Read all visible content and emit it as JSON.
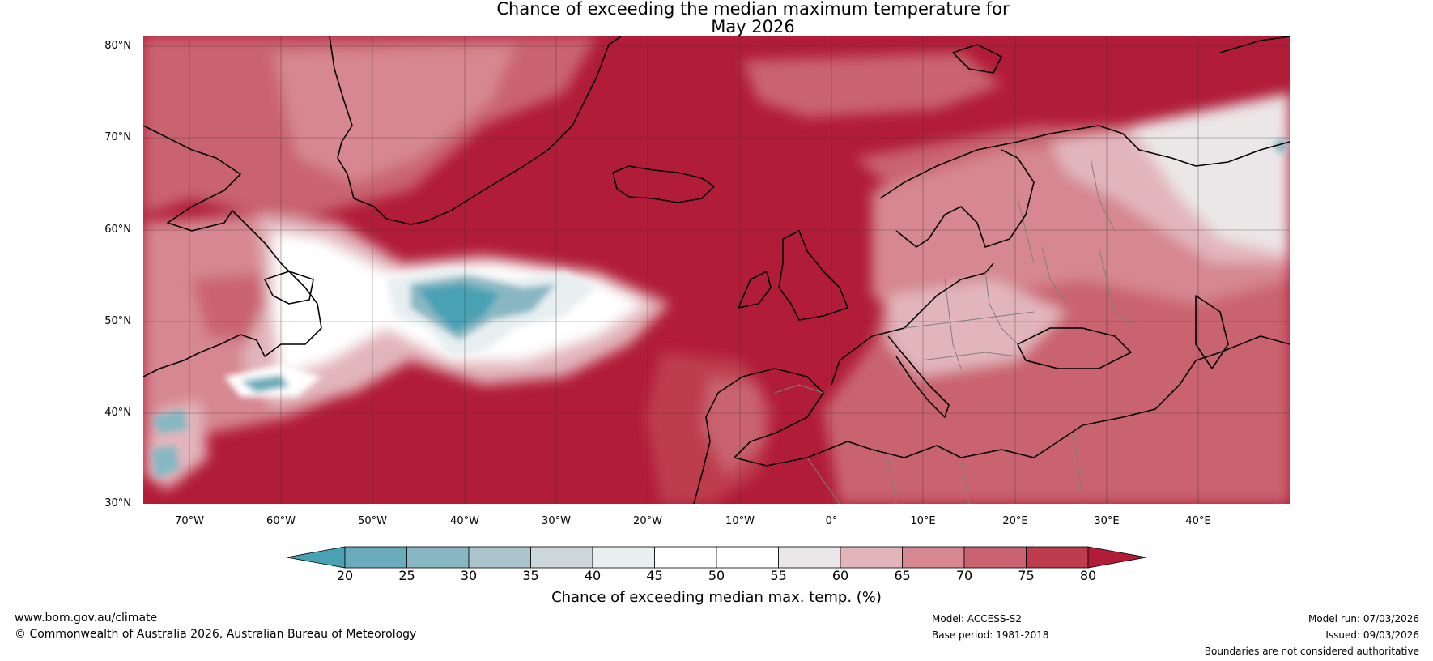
{
  "title": {
    "line1": "Chance of exceeding the median maximum temperature for",
    "line2": "May 2026"
  },
  "map": {
    "lat_labels": [
      "80°N",
      "70°N",
      "60°N",
      "50°N",
      "40°N",
      "30°N"
    ],
    "lon_labels": [
      "70°W",
      "60°W",
      "50°W",
      "40°W",
      "30°W",
      "20°W",
      "10°W",
      "0°",
      "10°E",
      "20°E",
      "30°E",
      "40°E"
    ],
    "regions": [
      "greenland",
      "iceland",
      "scandinavia",
      "british-isles",
      "iberia",
      "north-africa",
      "europe-mainland",
      "north-america",
      "cool-anomaly-atlantic"
    ]
  },
  "colorbar": {
    "ticks": [
      "20",
      "25",
      "30",
      "35",
      "40",
      "45",
      "50",
      "55",
      "60",
      "65",
      "70",
      "75",
      "80"
    ],
    "colors": [
      "#4aa1b4",
      "#6aacbc",
      "#88b7c3",
      "#a9c5cb",
      "#cdd6d8",
      "#e8eff1",
      "#ffffff",
      "#ffffff",
      "#ebe6e7",
      "#e2b5bb",
      "#d68791",
      "#c9636f",
      "#be3d4d",
      "#b11c38"
    ],
    "title": "Chance of exceeding median max. temp. (%)"
  },
  "footer": {
    "left1": "www.bom.gov.au/climate",
    "left2": "© Commonwealth of Australia 2026, Australian Bureau of Meteorology",
    "model": "Model: ACCESS-S2",
    "base": "Base period: 1981-2018",
    "run": "Model run: 07/03/2026",
    "issued": "Issued: 09/03/2026",
    "disclaimer": "Boundaries are not considered authoritative"
  }
}
